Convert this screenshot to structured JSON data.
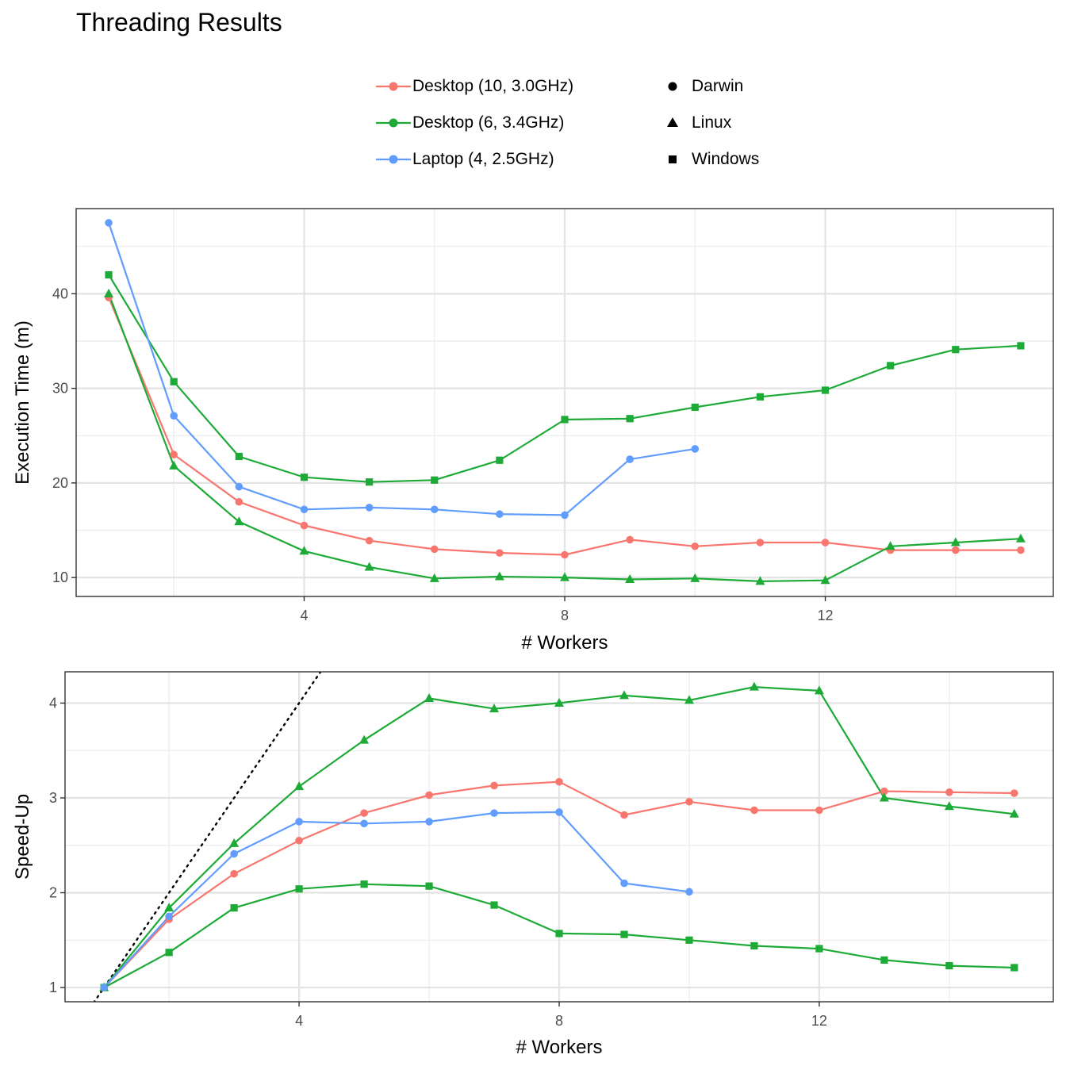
{
  "title": "Threading Results",
  "legend": {
    "colour_entries": [
      {
        "label": "Desktop (10, 3.0GHz)",
        "color": "#F8766D"
      },
      {
        "label": "Desktop (6, 3.4GHz)",
        "color": "#1DAA36"
      },
      {
        "label": "Laptop (4, 2.5GHz)",
        "color": "#619CFF"
      }
    ],
    "shape_entries": [
      {
        "label": "Darwin",
        "shape": "circle"
      },
      {
        "label": "Linux",
        "shape": "triangle"
      },
      {
        "label": "Windows",
        "shape": "square"
      }
    ]
  },
  "chart_data": [
    {
      "type": "line",
      "title": "",
      "xlabel": "# Workers",
      "ylabel": "Execution Time (m)",
      "xlim": [
        0.5,
        15.5
      ],
      "ylim": [
        8.0,
        49.0
      ],
      "xticks": [
        4,
        8,
        12
      ],
      "yticks": [
        10,
        20,
        30,
        40
      ],
      "grid": true,
      "series": [
        {
          "group": "Desktop (10, 3.0GHz)",
          "os": "Darwin",
          "color": "#F8766D",
          "shape": "circle",
          "x": [
            1,
            2,
            3,
            4,
            5,
            6,
            7,
            8,
            9,
            10,
            11,
            12,
            13,
            14,
            15
          ],
          "y": [
            39.6,
            23.0,
            18.0,
            15.5,
            13.9,
            13.0,
            12.6,
            12.4,
            14.0,
            13.3,
            13.7,
            13.7,
            12.9,
            12.9,
            12.9
          ]
        },
        {
          "group": "Desktop (6, 3.4GHz)",
          "os": "Linux",
          "color": "#1DAA36",
          "shape": "triangle",
          "x": [
            1,
            2,
            3,
            4,
            5,
            6,
            7,
            8,
            9,
            10,
            11,
            12,
            13,
            14,
            15
          ],
          "y": [
            40.0,
            21.8,
            15.9,
            12.8,
            11.1,
            9.9,
            10.1,
            10.0,
            9.8,
            9.9,
            9.6,
            9.7,
            13.3,
            13.7,
            14.1
          ]
        },
        {
          "group": "Desktop (6, 3.4GHz)",
          "os": "Windows",
          "color": "#1DAA36",
          "shape": "square",
          "x": [
            1,
            2,
            3,
            4,
            5,
            6,
            7,
            8,
            9,
            10,
            11,
            12,
            13,
            14,
            15
          ],
          "y": [
            42.0,
            30.7,
            22.8,
            20.6,
            20.1,
            20.3,
            22.4,
            26.7,
            26.8,
            28.0,
            29.1,
            29.8,
            32.4,
            34.1,
            34.5
          ]
        },
        {
          "group": "Laptop (4, 2.5GHz)",
          "os": "Darwin",
          "color": "#619CFF",
          "shape": "circle",
          "x": [
            1,
            2,
            3,
            4,
            5,
            6,
            7,
            8,
            9,
            10
          ],
          "y": [
            47.5,
            27.1,
            19.6,
            17.2,
            17.4,
            17.2,
            16.7,
            16.6,
            22.5,
            23.6
          ]
        }
      ]
    },
    {
      "type": "line",
      "title": "",
      "xlabel": "# Workers",
      "ylabel": "Speed-Up",
      "xlim": [
        0.4,
        15.6
      ],
      "ylim": [
        0.85,
        4.33
      ],
      "xticks": [
        4,
        8,
        12
      ],
      "yticks": [
        1,
        2,
        3,
        4
      ],
      "grid": true,
      "reference_line": {
        "style": "dotted",
        "color": "#000000",
        "slope": 1,
        "intercept": 0
      },
      "series": [
        {
          "group": "Desktop (10, 3.0GHz)",
          "os": "Darwin",
          "color": "#F8766D",
          "shape": "circle",
          "x": [
            1,
            2,
            3,
            4,
            5,
            6,
            7,
            8,
            9,
            10,
            11,
            12,
            13,
            14,
            15
          ],
          "y": [
            1.0,
            1.72,
            2.2,
            2.55,
            2.84,
            3.03,
            3.13,
            3.17,
            2.82,
            2.96,
            2.87,
            2.87,
            3.07,
            3.06,
            3.05
          ]
        },
        {
          "group": "Desktop (6, 3.4GHz)",
          "os": "Linux",
          "color": "#1DAA36",
          "shape": "triangle",
          "x": [
            1,
            2,
            3,
            4,
            5,
            6,
            7,
            8,
            9,
            10,
            11,
            12,
            13,
            14,
            15
          ],
          "y": [
            1.0,
            1.84,
            2.52,
            3.12,
            3.61,
            4.05,
            3.94,
            4.0,
            4.08,
            4.03,
            4.17,
            4.13,
            3.0,
            2.91,
            2.83
          ]
        },
        {
          "group": "Desktop (6, 3.4GHz)",
          "os": "Windows",
          "color": "#1DAA36",
          "shape": "square",
          "x": [
            1,
            2,
            3,
            4,
            5,
            6,
            7,
            8,
            9,
            10,
            11,
            12,
            13,
            14,
            15
          ],
          "y": [
            1.0,
            1.37,
            1.84,
            2.04,
            2.09,
            2.07,
            1.87,
            1.57,
            1.56,
            1.5,
            1.44,
            1.41,
            1.29,
            1.23,
            1.21
          ]
        },
        {
          "group": "Laptop (4, 2.5GHz)",
          "os": "Darwin",
          "color": "#619CFF",
          "shape": "circle",
          "x": [
            1,
            2,
            3,
            4,
            5,
            6,
            7,
            8,
            9,
            10
          ],
          "y": [
            1.0,
            1.75,
            2.41,
            2.75,
            2.73,
            2.75,
            2.84,
            2.85,
            2.1,
            2.01
          ]
        }
      ]
    }
  ]
}
